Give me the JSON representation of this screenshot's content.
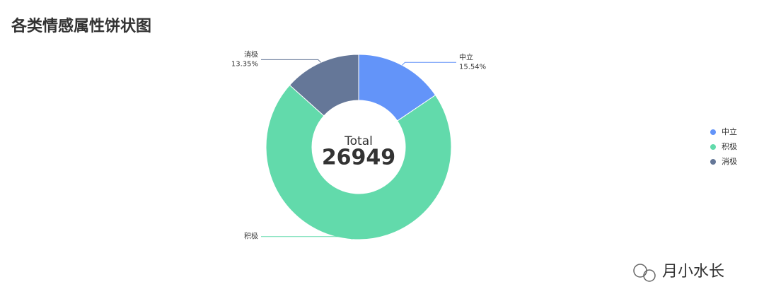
{
  "chart_data": {
    "type": "pie",
    "donut": true,
    "title": "各类情感属性饼状图",
    "categories": [
      "中立",
      "积极",
      "消极"
    ],
    "values": [
      15.54,
      71.11,
      13.35
    ],
    "value_labels": [
      "15.54%",
      null,
      "13.35%"
    ],
    "colors": [
      "#6394f9",
      "#62daab",
      "#657798"
    ],
    "center_label": "Total",
    "total": 26949,
    "legend": "right"
  },
  "watermark": "月小水长"
}
